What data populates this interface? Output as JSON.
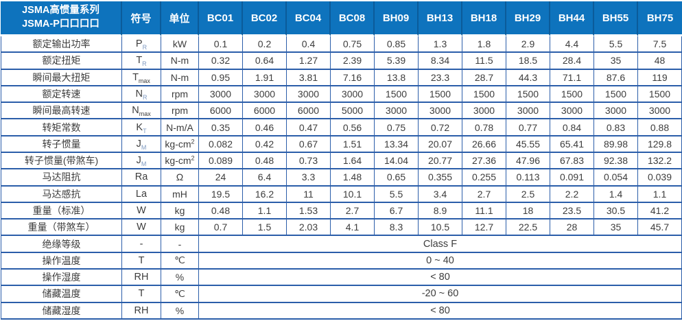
{
  "header": {
    "title_line1": "JSMA高惯量系列",
    "title_line2": "JSMA-P口口口口",
    "symbol_col": "符号",
    "unit_col": "单位",
    "models": [
      "BC01",
      "BC02",
      "BC04",
      "BC08",
      "BH09",
      "BH13",
      "BH18",
      "BH29",
      "BH44",
      "BH55",
      "BH75"
    ]
  },
  "rows": [
    {
      "label": "额定输出功率",
      "symbol": "P",
      "symbol_sub": "R",
      "unit": "kW",
      "values": [
        "0.1",
        "0.2",
        "0.4",
        "0.75",
        "0.85",
        "1.3",
        "1.8",
        "2.9",
        "4.4",
        "5.5",
        "7.5"
      ]
    },
    {
      "label": "额定扭矩",
      "symbol": "T",
      "symbol_sub": "R",
      "unit": "N-m",
      "values": [
        "0.32",
        "0.64",
        "1.27",
        "2.39",
        "5.39",
        "8.34",
        "11.5",
        "18.5",
        "28.4",
        "35",
        "48"
      ]
    },
    {
      "label": "瞬间最大扭矩",
      "symbol": "T",
      "symbol_sub": "max",
      "unit": "N-m",
      "values": [
        "0.95",
        "1.91",
        "3.81",
        "7.16",
        "13.8",
        "23.3",
        "28.7",
        "44.3",
        "71.1",
        "87.6",
        "119"
      ]
    },
    {
      "label": "额定转速",
      "symbol": "N",
      "symbol_sub": "R",
      "unit": "rpm",
      "values": [
        "3000",
        "3000",
        "3000",
        "3000",
        "1500",
        "1500",
        "1500",
        "1500",
        "1500",
        "1500",
        "1500"
      ]
    },
    {
      "label": "瞬间最高转速",
      "symbol": "N",
      "symbol_sub": "max",
      "unit": "rpm",
      "values": [
        "6000",
        "6000",
        "6000",
        "5000",
        "3000",
        "3000",
        "3000",
        "3000",
        "3000",
        "3000",
        "3000"
      ]
    },
    {
      "label": "转矩常数",
      "symbol": "K",
      "symbol_sub": "T",
      "unit": "N-m/A",
      "values": [
        "0.35",
        "0.46",
        "0.47",
        "0.56",
        "0.75",
        "0.72",
        "0.78",
        "0.77",
        "0.84",
        "0.83",
        "0.88"
      ]
    },
    {
      "label": "转子惯量",
      "symbol": "J",
      "symbol_sub": "M",
      "unit": "kg-cm",
      "unit_sup": "2",
      "values": [
        "0.082",
        "0.42",
        "0.67",
        "1.51",
        "13.34",
        "20.07",
        "26.66",
        "45.55",
        "65.41",
        "89.98",
        "129.8"
      ]
    },
    {
      "label": "转子惯量(带煞车)",
      "symbol": "J",
      "symbol_sub": "M",
      "unit": "kg-cm",
      "unit_sup": "2",
      "values": [
        "0.089",
        "0.48",
        "0.73",
        "1.64",
        "14.04",
        "20.77",
        "27.36",
        "47.96",
        "67.83",
        "92.38",
        "132.2"
      ]
    },
    {
      "label": "马达阻抗",
      "symbol": "Ra",
      "unit": "Ω",
      "values": [
        "24",
        "6.4",
        "3.3",
        "1.48",
        "0.65",
        "0.355",
        "0.255",
        "0.113",
        "0.091",
        "0.054",
        "0.039"
      ]
    },
    {
      "label": "马达感抗",
      "symbol": "La",
      "unit": "mH",
      "values": [
        "19.5",
        "16.2",
        "11",
        "10.1",
        "5.5",
        "3.4",
        "2.7",
        "2.5",
        "2.2",
        "1.4",
        "1.1"
      ]
    },
    {
      "label": "重量（标准）",
      "symbol": "W",
      "unit": "kg",
      "values": [
        "0.48",
        "1.1",
        "1.53",
        "2.7",
        "6.7",
        "8.9",
        "11.1",
        "18",
        "23.5",
        "30.5",
        "41.2"
      ]
    },
    {
      "label": "重量（带煞车）",
      "symbol": "W",
      "unit": "kg",
      "values": [
        "0.7",
        "1.5",
        "2.03",
        "4.1",
        "8.3",
        "10.5",
        "12.7",
        "22.5",
        "28",
        "35",
        "45.7"
      ]
    }
  ],
  "env_rows": [
    {
      "label": "绝缘等级",
      "symbol": "-",
      "unit": "-",
      "value": "Class F"
    },
    {
      "label": "操作温度",
      "symbol": "T",
      "unit": "℃",
      "value": "0 ~ 40"
    },
    {
      "label": "操作湿度",
      "symbol": "RH",
      "unit": "%",
      "value": "< 80"
    },
    {
      "label": "储藏温度",
      "symbol": "T",
      "unit": "℃",
      "value": "-20 ~ 60"
    },
    {
      "label": "储藏湿度",
      "symbol": "RH",
      "unit": "%",
      "value": "< 80"
    }
  ],
  "colors": {
    "header_bg": "#0e73bd",
    "header_text": "#ffffff",
    "border": "#2a5da9",
    "body_text": "#3c3c3c"
  }
}
